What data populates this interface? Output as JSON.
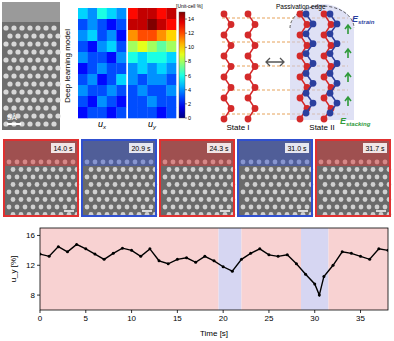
{
  "figure": {
    "image": {
      "scale_label": "5Å"
    },
    "side_label": "Deep learning model",
    "colorbar": {
      "label": "[Unit-cell %]",
      "range": [
        0,
        15
      ],
      "ticks": [
        0,
        2,
        4,
        6,
        8,
        10,
        12,
        14
      ]
    },
    "heatmaps": [
      {
        "label": "u",
        "subscript": "x",
        "cells": [
          [
            5,
            4,
            6,
            5,
            4
          ],
          [
            3,
            4,
            3,
            2,
            3
          ],
          [
            4,
            5,
            3,
            4,
            2
          ],
          [
            3,
            2,
            4,
            5,
            3
          ],
          [
            4,
            3,
            3,
            2,
            4
          ],
          [
            2,
            3,
            4,
            3,
            3
          ],
          [
            3,
            4,
            2,
            3,
            5
          ],
          [
            4,
            3,
            3,
            4,
            3
          ],
          [
            3,
            2,
            4,
            3,
            2
          ],
          [
            2,
            3,
            3,
            2,
            3
          ]
        ]
      },
      {
        "label": "u",
        "subscript": "y",
        "cells": [
          [
            13,
            14,
            14,
            13,
            14
          ],
          [
            14,
            14,
            15,
            14,
            13
          ],
          [
            11,
            12,
            12,
            11,
            10
          ],
          [
            8,
            9,
            8,
            7,
            8
          ],
          [
            6,
            5,
            6,
            6,
            5
          ],
          [
            4,
            5,
            4,
            5,
            4
          ],
          [
            4,
            3,
            4,
            4,
            3
          ],
          [
            3,
            4,
            3,
            3,
            4
          ],
          [
            3,
            3,
            4,
            3,
            3
          ],
          [
            3,
            3,
            3,
            2,
            3
          ]
        ]
      }
    ],
    "states": [
      {
        "label": "State I",
        "color": "#d42a2a"
      },
      {
        "label": "State II",
        "color": "#2b3f9e"
      }
    ],
    "edge_label": "Passivation edge",
    "energies": [
      {
        "symbol": "E",
        "subscript": "strain",
        "color": "#2b3f9e"
      },
      {
        "symbol": "E",
        "subscript": "stacking",
        "color": "#2f9a3a"
      }
    ],
    "frames": [
      {
        "time": "14.0 s",
        "color": "#e03030"
      },
      {
        "time": "20.9 s",
        "color": "#3050d0"
      },
      {
        "time": "24.3 s",
        "color": "#e03030"
      },
      {
        "time": "31.0 s",
        "color": "#3050d0"
      },
      {
        "time": "31.7 s",
        "color": "#e03030"
      }
    ]
  },
  "chart_data": {
    "type": "line",
    "x_label": "Time [s]",
    "y_label": "u_y [%]",
    "x": [
      0,
      1,
      2,
      3,
      4,
      5,
      6,
      7,
      8,
      9,
      10,
      11,
      12,
      13,
      14,
      15,
      16,
      17,
      18,
      19,
      20,
      21,
      22,
      23,
      24,
      25,
      26,
      27,
      28,
      29,
      30,
      30.5,
      31,
      32,
      33,
      34,
      35,
      36,
      37,
      38
    ],
    "series": [
      {
        "color": "#000000",
        "marker": "circle",
        "line_style": "solid",
        "values": [
          13.5,
          13.2,
          14.5,
          13.8,
          14.8,
          14.2,
          13.5,
          12.8,
          13.6,
          14.3,
          14.0,
          13.2,
          14.2,
          12.6,
          12.2,
          12.8,
          13.0,
          12.4,
          13.2,
          12.6,
          11.8,
          11.2,
          12.8,
          13.6,
          14.2,
          13.4,
          13.2,
          13.4,
          12.2,
          10.8,
          9.5,
          8.0,
          10.5,
          12.0,
          13.8,
          13.6,
          13.2,
          12.8,
          14.2,
          14.0
        ]
      }
    ],
    "regions": [
      {
        "start": 0,
        "end": 19.5,
        "color": "#f8d2d2"
      },
      {
        "start": 19.5,
        "end": 22,
        "color": "#d6d6f2"
      },
      {
        "start": 22,
        "end": 28.5,
        "color": "#f8d2d2"
      },
      {
        "start": 28.5,
        "end": 31.5,
        "color": "#d6d6f2"
      },
      {
        "start": 31.5,
        "end": 38,
        "color": "#f8d2d2"
      }
    ],
    "xlim": [
      0,
      38
    ],
    "ylim": [
      6,
      17
    ],
    "xticks": [
      0,
      5,
      10,
      15,
      20,
      25,
      30,
      35
    ],
    "yticks": [
      8,
      12,
      16
    ]
  }
}
